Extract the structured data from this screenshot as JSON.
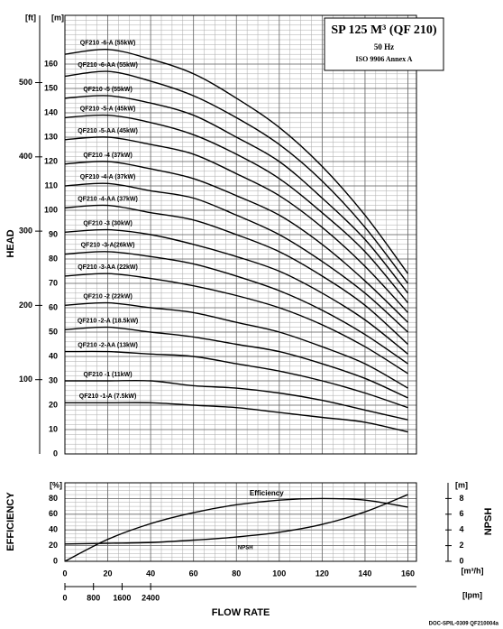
{
  "chart_data": [
    {
      "type": "line",
      "title": "SP 125 M³ (QF 210)",
      "subtitle": "50 Hz",
      "annotation": "ISO 9906 Annex A",
      "y_label": "HEAD",
      "y_unit": "[m]",
      "y2_unit": "[ft]",
      "x": [
        0,
        20,
        40,
        60,
        80,
        100,
        120,
        140,
        160
      ],
      "xlim": [
        0,
        164
      ],
      "xticks": [
        0,
        20,
        40,
        60,
        80,
        100,
        120,
        140,
        160
      ],
      "ylim": [
        0,
        180
      ],
      "yticks": [
        0,
        10,
        20,
        30,
        40,
        50,
        60,
        70,
        80,
        90,
        100,
        110,
        120,
        130,
        140,
        150,
        160
      ],
      "y2lim": [
        0,
        590.55
      ],
      "y2ticks": [
        100,
        200,
        300,
        400,
        500
      ],
      "grid": true,
      "series": [
        {
          "name": "QF210 -6-A (55kW)",
          "color": "#000000",
          "values": [
            164,
            166,
            162,
            156,
            146,
            134,
            118,
            98,
            74
          ]
        },
        {
          "name": "QF210 -6-AA (55kW)",
          "color": "#000000",
          "values": [
            155,
            157,
            153,
            147,
            138,
            127,
            112,
            93,
            70
          ]
        },
        {
          "name": "QF210 -5 (55kW)",
          "color": "#000000",
          "values": [
            146,
            147,
            144,
            139,
            130,
            120,
            105,
            88,
            66
          ]
        },
        {
          "name": "QF210 -5-A (45kW)",
          "color": "#000000",
          "values": [
            138,
            139,
            136,
            131,
            123,
            113,
            99,
            83,
            62
          ]
        },
        {
          "name": "QF210 -5-AA (45kW)",
          "color": "#000000",
          "values": [
            129,
            130,
            127,
            123,
            115,
            106,
            93,
            77,
            58
          ]
        },
        {
          "name": "QF210 -4 (37kW)",
          "color": "#000000",
          "values": [
            119,
            120,
            117,
            113,
            106,
            98,
            86,
            71,
            54
          ]
        },
        {
          "name": "QF210 -4-A (37kW)",
          "color": "#000000",
          "values": [
            110,
            111,
            108,
            105,
            98,
            90,
            79,
            66,
            50
          ]
        },
        {
          "name": "QF210 -4-AA (37kW)",
          "color": "#000000",
          "values": [
            101,
            102,
            99,
            96,
            90,
            83,
            73,
            61,
            45
          ]
        },
        {
          "name": "QF210 -3 (30kW)",
          "color": "#000000",
          "values": [
            91,
            92,
            90,
            86,
            81,
            75,
            66,
            55,
            41
          ]
        },
        {
          "name": "QF210 -3-A(26kW)",
          "color": "#000000",
          "values": [
            82,
            83,
            81,
            78,
            73,
            67,
            59,
            49,
            37
          ]
        },
        {
          "name": "QF210 -3-AA (22kW)",
          "color": "#000000",
          "values": [
            73,
            74,
            72,
            69,
            65,
            60,
            53,
            44,
            33
          ]
        },
        {
          "name": "QF210 -2 (22kW)",
          "color": "#000000",
          "values": [
            61,
            62,
            60,
            58,
            54,
            50,
            44,
            37,
            27
          ]
        },
        {
          "name": "QF210 -2-A (18.5kW)",
          "color": "#000000",
          "values": [
            51,
            52,
            50,
            48,
            45,
            42,
            37,
            31,
            23
          ]
        },
        {
          "name": "QF210 -2-AA (13kW)",
          "color": "#000000",
          "values": [
            42,
            42,
            41,
            40,
            37,
            34,
            30,
            25,
            19
          ]
        },
        {
          "name": "QF210 -1 (11kW)",
          "color": "#000000",
          "values": [
            30,
            30,
            30,
            28,
            27,
            25,
            22,
            18,
            14
          ]
        },
        {
          "name": "QF210 -1-A (7.5kW)",
          "color": "#000000",
          "values": [
            21,
            21,
            21,
            20,
            19,
            17,
            15,
            13,
            9
          ]
        }
      ]
    },
    {
      "type": "line",
      "y_label": "EFFICIENCY",
      "y_unit": "[%]",
      "y2_label": "NPSH",
      "y2_unit": "[m]",
      "x_label": "FLOW RATE",
      "x_unit": "[m³/h]",
      "x2_unit": "[lpm]",
      "x": [
        0,
        20,
        40,
        60,
        80,
        100,
        120,
        140,
        160
      ],
      "xlim": [
        0,
        164
      ],
      "xticks": [
        0,
        20,
        40,
        60,
        80,
        100,
        120,
        140,
        160
      ],
      "x2lim": [
        0,
        9840
      ],
      "x2ticks": [
        0,
        800,
        1600,
        2400
      ],
      "ylim": [
        0,
        100
      ],
      "yticks": [
        0,
        20,
        40,
        60,
        80
      ],
      "y2lim": [
        0,
        10
      ],
      "y2ticks": [
        0,
        2,
        4,
        6,
        8
      ],
      "grid": true,
      "series": [
        {
          "name": "Efficiency",
          "color": "#000000",
          "values": [
            0,
            28,
            48,
            62,
            72,
            78,
            80,
            78,
            69
          ]
        },
        {
          "name": "NPSH",
          "color": "#000000",
          "axis": "y2",
          "values": [
            2.2,
            2.3,
            2.4,
            2.7,
            3.1,
            3.7,
            4.7,
            6.3,
            8.5
          ]
        }
      ]
    }
  ],
  "footer": "DOC-SPIL-0309 QF210004a"
}
